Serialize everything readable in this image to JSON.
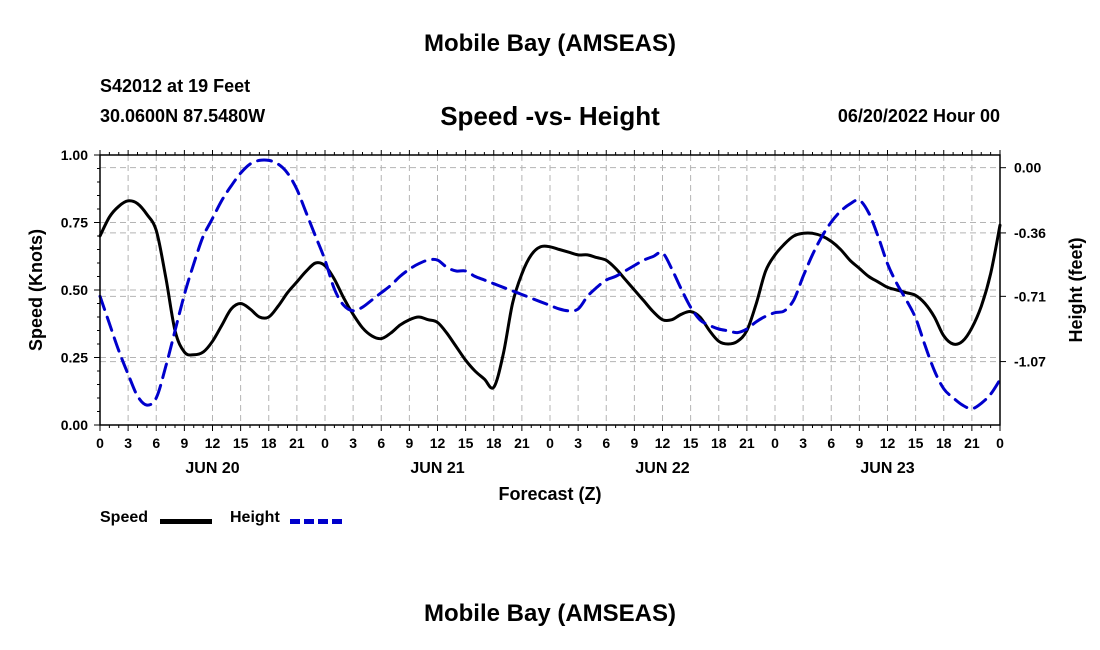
{
  "header": {
    "title": "Mobile Bay (AMSEAS)",
    "station": "S42012 at 19 Feet",
    "coords": "30.0600N  87.5480W",
    "chart_title": "Speed -vs- Height",
    "run_time": "06/20/2022 Hour 00",
    "bottom_title": "Mobile Bay (AMSEAS)"
  },
  "legend": {
    "speed_label": "Speed",
    "height_label": "Height"
  },
  "colors": {
    "speed": "#000000",
    "height": "#0000cc",
    "grid": "#b4b4b4"
  },
  "chart_data": {
    "type": "line",
    "xlabel": "Forecast (Z)",
    "ylabel_left": "Speed (Knots)",
    "ylabel_right": "Height (feet)",
    "x_range_hours": [
      0,
      96
    ],
    "x_tick_labels": [
      "0",
      "3",
      "6",
      "9",
      "12",
      "15",
      "18",
      "21",
      "0",
      "3",
      "6",
      "9",
      "12",
      "15",
      "18",
      "21",
      "0",
      "3",
      "6",
      "9",
      "12",
      "15",
      "18",
      "21",
      "0",
      "3",
      "6",
      "9",
      "12",
      "15",
      "18",
      "21",
      "0"
    ],
    "date_labels": [
      {
        "label": "JUN 20",
        "hour": 12
      },
      {
        "label": "JUN 21",
        "hour": 36
      },
      {
        "label": "JUN 22",
        "hour": 60
      },
      {
        "label": "JUN 23",
        "hour": 84
      }
    ],
    "left_axis": {
      "ylim": [
        0,
        1
      ],
      "ticks": [
        "0.00",
        "0.25",
        "0.50",
        "0.75",
        "1.00"
      ],
      "tick_values": [
        0,
        0.25,
        0.5,
        0.75,
        1.0
      ]
    },
    "right_axis": {
      "ylim": [
        -1.42,
        0.07
      ],
      "ticks": [
        "0.00",
        "-0.36",
        "-0.71",
        "-1.07"
      ],
      "tick_values": [
        0,
        -0.36,
        -0.71,
        -1.07
      ]
    },
    "grid": true,
    "series": [
      {
        "name": "Speed",
        "axis": "left",
        "style": "solid",
        "points": [
          [
            0,
            0.7
          ],
          [
            1,
            0.77
          ],
          [
            2,
            0.81
          ],
          [
            3,
            0.83
          ],
          [
            4,
            0.82
          ],
          [
            5,
            0.78
          ],
          [
            6,
            0.72
          ],
          [
            7,
            0.55
          ],
          [
            8,
            0.35
          ],
          [
            9,
            0.27
          ],
          [
            10,
            0.26
          ],
          [
            11,
            0.27
          ],
          [
            12,
            0.31
          ],
          [
            13,
            0.37
          ],
          [
            14,
            0.43
          ],
          [
            15,
            0.45
          ],
          [
            16,
            0.43
          ],
          [
            17,
            0.4
          ],
          [
            18,
            0.4
          ],
          [
            19,
            0.44
          ],
          [
            20,
            0.49
          ],
          [
            21,
            0.53
          ],
          [
            22,
            0.57
          ],
          [
            23,
            0.6
          ],
          [
            24,
            0.59
          ],
          [
            25,
            0.54
          ],
          [
            26,
            0.47
          ],
          [
            27,
            0.41
          ],
          [
            28,
            0.36
          ],
          [
            29,
            0.33
          ],
          [
            30,
            0.32
          ],
          [
            31,
            0.34
          ],
          [
            32,
            0.37
          ],
          [
            33,
            0.39
          ],
          [
            34,
            0.4
          ],
          [
            35,
            0.39
          ],
          [
            36,
            0.38
          ],
          [
            37,
            0.34
          ],
          [
            38,
            0.29
          ],
          [
            39,
            0.24
          ],
          [
            40,
            0.2
          ],
          [
            41,
            0.17
          ],
          [
            42,
            0.14
          ],
          [
            43,
            0.26
          ],
          [
            44,
            0.45
          ],
          [
            45,
            0.56
          ],
          [
            46,
            0.63
          ],
          [
            47,
            0.66
          ],
          [
            48,
            0.66
          ],
          [
            49,
            0.65
          ],
          [
            50,
            0.64
          ],
          [
            51,
            0.63
          ],
          [
            52,
            0.63
          ],
          [
            53,
            0.62
          ],
          [
            54,
            0.61
          ],
          [
            55,
            0.58
          ],
          [
            56,
            0.54
          ],
          [
            57,
            0.5
          ],
          [
            58,
            0.46
          ],
          [
            59,
            0.42
          ],
          [
            60,
            0.39
          ],
          [
            61,
            0.39
          ],
          [
            62,
            0.41
          ],
          [
            63,
            0.42
          ],
          [
            64,
            0.4
          ],
          [
            65,
            0.35
          ],
          [
            66,
            0.31
          ],
          [
            67,
            0.3
          ],
          [
            68,
            0.31
          ],
          [
            69,
            0.35
          ],
          [
            70,
            0.45
          ],
          [
            71,
            0.57
          ],
          [
            72,
            0.63
          ],
          [
            73,
            0.67
          ],
          [
            74,
            0.7
          ],
          [
            75,
            0.71
          ],
          [
            76,
            0.71
          ],
          [
            77,
            0.7
          ],
          [
            78,
            0.68
          ],
          [
            79,
            0.65
          ],
          [
            80,
            0.61
          ],
          [
            81,
            0.58
          ],
          [
            82,
            0.55
          ],
          [
            83,
            0.53
          ],
          [
            84,
            0.51
          ],
          [
            85,
            0.5
          ],
          [
            86,
            0.49
          ],
          [
            87,
            0.48
          ],
          [
            88,
            0.45
          ],
          [
            89,
            0.4
          ],
          [
            90,
            0.33
          ],
          [
            91,
            0.3
          ],
          [
            92,
            0.31
          ],
          [
            93,
            0.36
          ],
          [
            94,
            0.44
          ],
          [
            95,
            0.56
          ],
          [
            96,
            0.74
          ]
        ]
      },
      {
        "name": "Height",
        "axis": "right",
        "style": "dashed",
        "points": [
          [
            0,
            -0.71
          ],
          [
            1,
            -0.86
          ],
          [
            2,
            -1.01
          ],
          [
            3,
            -1.14
          ],
          [
            4,
            -1.26
          ],
          [
            5,
            -1.31
          ],
          [
            6,
            -1.27
          ],
          [
            7,
            -1.1
          ],
          [
            8,
            -0.9
          ],
          [
            9,
            -0.7
          ],
          [
            10,
            -0.53
          ],
          [
            11,
            -0.38
          ],
          [
            12,
            -0.28
          ],
          [
            13,
            -0.18
          ],
          [
            14,
            -0.1
          ],
          [
            15,
            -0.03
          ],
          [
            16,
            0.02
          ],
          [
            17,
            0.04
          ],
          [
            18,
            0.04
          ],
          [
            19,
            0.02
          ],
          [
            20,
            -0.03
          ],
          [
            21,
            -0.12
          ],
          [
            22,
            -0.25
          ],
          [
            23,
            -0.38
          ],
          [
            24,
            -0.51
          ],
          [
            25,
            -0.67
          ],
          [
            26,
            -0.76
          ],
          [
            27,
            -0.79
          ],
          [
            28,
            -0.77
          ],
          [
            29,
            -0.73
          ],
          [
            30,
            -0.69
          ],
          [
            31,
            -0.65
          ],
          [
            32,
            -0.6
          ],
          [
            33,
            -0.56
          ],
          [
            34,
            -0.53
          ],
          [
            35,
            -0.51
          ],
          [
            36,
            -0.51
          ],
          [
            37,
            -0.55
          ],
          [
            38,
            -0.57
          ],
          [
            39,
            -0.57
          ],
          [
            40,
            -0.6
          ],
          [
            41,
            -0.62
          ],
          [
            42,
            -0.64
          ],
          [
            43,
            -0.66
          ],
          [
            44,
            -0.68
          ],
          [
            45,
            -0.7
          ],
          [
            46,
            -0.72
          ],
          [
            47,
            -0.74
          ],
          [
            48,
            -0.76
          ],
          [
            49,
            -0.78
          ],
          [
            50,
            -0.79
          ],
          [
            51,
            -0.78
          ],
          [
            52,
            -0.71
          ],
          [
            53,
            -0.66
          ],
          [
            54,
            -0.62
          ],
          [
            55,
            -0.6
          ],
          [
            56,
            -0.57
          ],
          [
            57,
            -0.54
          ],
          [
            58,
            -0.51
          ],
          [
            59,
            -0.49
          ],
          [
            60,
            -0.47
          ],
          [
            61,
            -0.56
          ],
          [
            62,
            -0.67
          ],
          [
            63,
            -0.77
          ],
          [
            64,
            -0.84
          ],
          [
            65,
            -0.87
          ],
          [
            66,
            -0.89
          ],
          [
            67,
            -0.9
          ],
          [
            68,
            -0.91
          ],
          [
            69,
            -0.89
          ],
          [
            70,
            -0.85
          ],
          [
            71,
            -0.82
          ],
          [
            72,
            -0.8
          ],
          [
            73,
            -0.79
          ],
          [
            74,
            -0.73
          ],
          [
            75,
            -0.6
          ],
          [
            76,
            -0.48
          ],
          [
            77,
            -0.38
          ],
          [
            78,
            -0.3
          ],
          [
            79,
            -0.24
          ],
          [
            80,
            -0.2
          ],
          [
            81,
            -0.18
          ],
          [
            82,
            -0.25
          ],
          [
            83,
            -0.38
          ],
          [
            84,
            -0.53
          ],
          [
            85,
            -0.64
          ],
          [
            86,
            -0.73
          ],
          [
            87,
            -0.83
          ],
          [
            88,
            -0.98
          ],
          [
            89,
            -1.12
          ],
          [
            90,
            -1.22
          ],
          [
            91,
            -1.27
          ],
          [
            92,
            -1.31
          ],
          [
            93,
            -1.33
          ],
          [
            94,
            -1.3
          ],
          [
            95,
            -1.25
          ],
          [
            96,
            -1.17
          ]
        ]
      }
    ]
  }
}
